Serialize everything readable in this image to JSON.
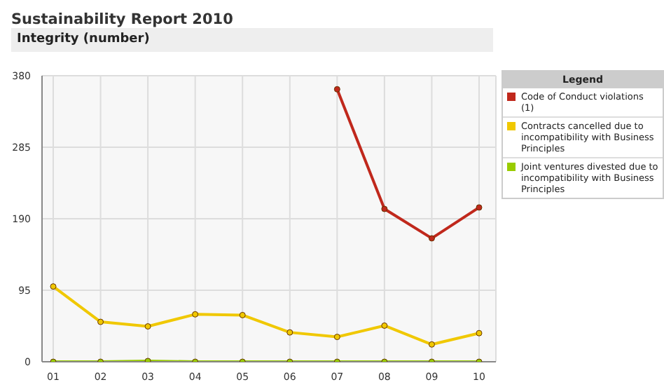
{
  "chart_data": {
    "type": "line",
    "title": "Sustainability Report 2010",
    "subtitle": "Integrity (number)",
    "legend_title": "Legend",
    "categories": [
      "01",
      "02",
      "03",
      "04",
      "05",
      "06",
      "07",
      "08",
      "09",
      "10"
    ],
    "series": [
      {
        "name": "Code of Conduct violations (1)",
        "color": "#c0281c",
        "values": [
          null,
          null,
          null,
          null,
          null,
          null,
          362,
          203,
          164,
          205
        ]
      },
      {
        "name": "Contracts cancelled due to incompatibility with Business Principles",
        "color": "#f0c800",
        "values": [
          100,
          53,
          47,
          63,
          62,
          39,
          33,
          48,
          23,
          38
        ]
      },
      {
        "name": "Joint ventures divested due to incompatibility with Business Principles",
        "color": "#99cc00",
        "values": [
          0,
          0,
          1,
          0,
          0,
          0,
          0,
          0,
          0,
          0
        ]
      }
    ],
    "ylim": [
      0,
      380
    ],
    "yticks": [
      0,
      95,
      190,
      285,
      380
    ],
    "grid": true,
    "legend": "right",
    "marker": "circle",
    "line_style": "solid"
  }
}
